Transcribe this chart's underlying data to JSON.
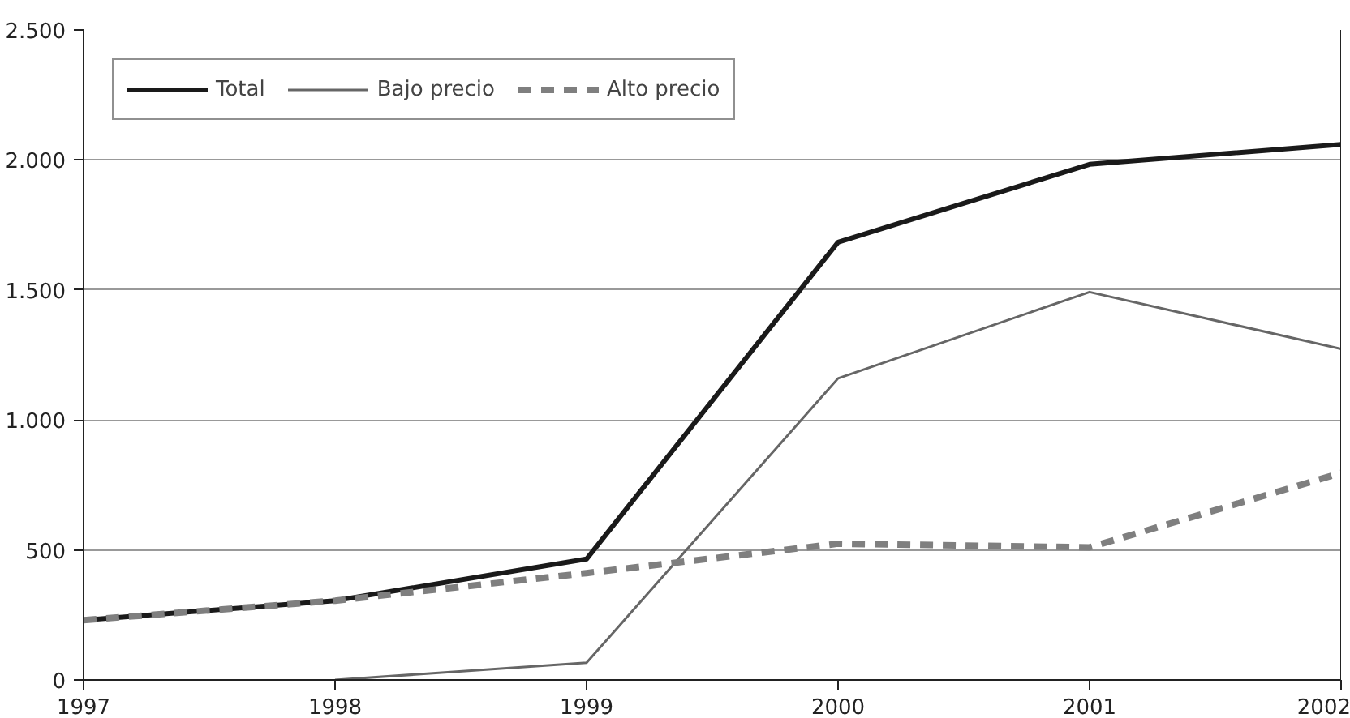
{
  "chart_data": {
    "type": "line",
    "x": [
      1997,
      1998,
      1999,
      2000,
      2001,
      2002
    ],
    "series": [
      {
        "name": "Total",
        "color": "#1a1a1a",
        "values": [
          230,
          305,
          465,
          1684,
          1983,
          2060
        ]
      },
      {
        "name": "Bajo precio",
        "color": "#666666",
        "values": [
          null,
          0,
          66,
          1160,
          1492,
          1273
        ]
      },
      {
        "name": "Alto precio",
        "color": "#7f7f7f",
        "values": [
          230,
          305,
          411,
          524,
          510,
          796
        ],
        "line_style": "dashed"
      }
    ],
    "xlim": [
      1997,
      2002
    ],
    "xticks": [
      1997,
      1998,
      1999,
      2000,
      2001,
      2002
    ],
    "ylim": [
      0,
      2500
    ],
    "yticks": [
      {
        "value": 0,
        "label": "0"
      },
      {
        "value": 500,
        "label": "500"
      },
      {
        "value": 1000,
        "label": "1.000"
      },
      {
        "value": 1500,
        "label": "1.500"
      },
      {
        "value": 2000,
        "label": "2.000"
      },
      {
        "value": 2500,
        "label": "2.500"
      }
    ],
    "grid": "y",
    "legend": "top left",
    "marker": "none",
    "line_style": "solid"
  }
}
